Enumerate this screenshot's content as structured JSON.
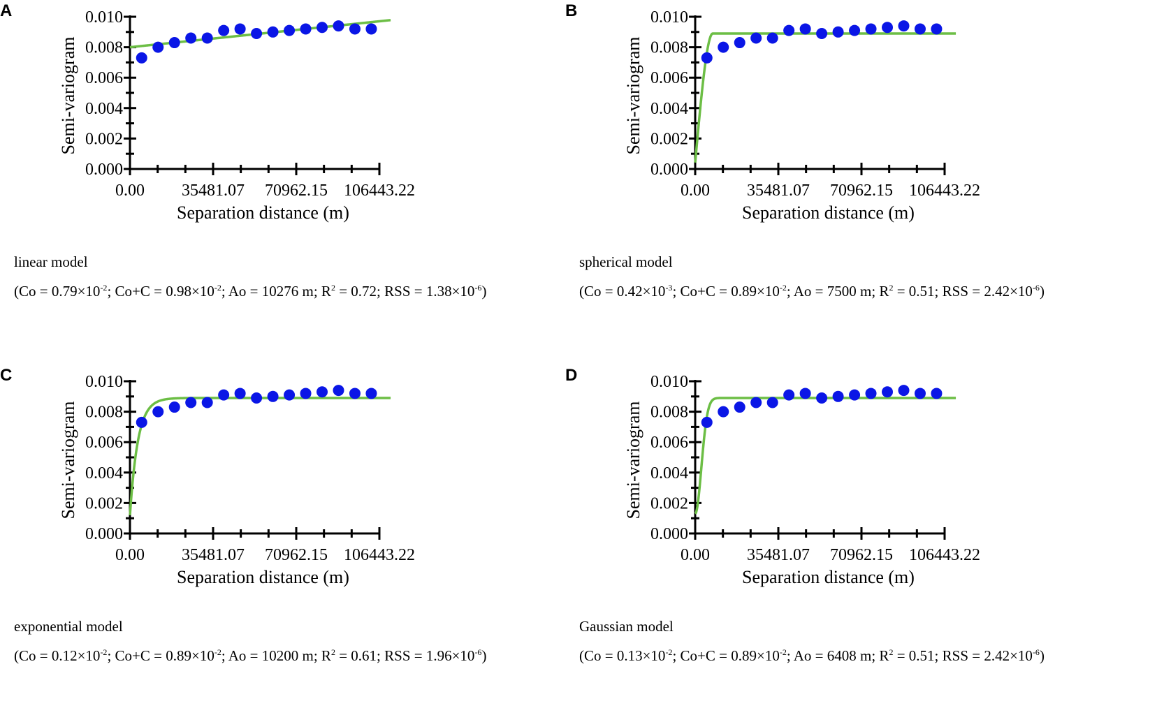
{
  "chart_data": [
    {
      "type": "scatter",
      "panel": "A",
      "model": "linear model",
      "params": {
        "Co_mant": "0.79",
        "Co_exp": "-2",
        "CoC_mant": "0.98",
        "CoC_exp": "-2",
        "Ao": "10276",
        "R2": "0.72",
        "RSS_mant": "1.38",
        "RSS_exp": "-6"
      },
      "xlabel": "Separation distance (m)",
      "ylabel": "Semi-variogram",
      "xlim": [
        0,
        106443.22
      ],
      "ylim": [
        0,
        0.01
      ],
      "xticks": [
        "0.00",
        "35481.07",
        "70962.15",
        "106443.22"
      ],
      "yticks": [
        "0.000",
        "0.002",
        "0.004",
        "0.006",
        "0.008",
        "0.010"
      ],
      "x": [
        5000,
        12000,
        19000,
        26000,
        33000,
        40000,
        47000,
        54000,
        61000,
        68000,
        75000,
        82000,
        89000,
        96000,
        103000
      ],
      "y": [
        0.0073,
        0.008,
        0.0083,
        0.0086,
        0.0086,
        0.0091,
        0.0092,
        0.0089,
        0.009,
        0.0091,
        0.0092,
        0.0093,
        0.0094,
        0.0092,
        0.0092
      ],
      "fit": {
        "model": "linear",
        "c0": 0.008,
        "slope": 1.6e-08
      }
    },
    {
      "type": "scatter",
      "panel": "B",
      "model": "spherical model",
      "params": {
        "Co_mant": "0.42",
        "Co_exp": "-3",
        "CoC_mant": "0.89",
        "CoC_exp": "-2",
        "Ao": "7500",
        "R2": "0.51",
        "RSS_mant": "2.42",
        "RSS_exp": "-6"
      },
      "xlabel": "Separation distance (m)",
      "ylabel": "Semi-variogram",
      "xlim": [
        0,
        106443.22
      ],
      "ylim": [
        0,
        0.01
      ],
      "xticks": [
        "0.00",
        "35481.07",
        "70962.15",
        "106443.22"
      ],
      "yticks": [
        "0.000",
        "0.002",
        "0.004",
        "0.006",
        "0.008",
        "0.010"
      ],
      "x": [
        5000,
        12000,
        19000,
        26000,
        33000,
        40000,
        47000,
        54000,
        61000,
        68000,
        75000,
        82000,
        89000,
        96000,
        103000
      ],
      "y": [
        0.0073,
        0.008,
        0.0083,
        0.0086,
        0.0086,
        0.0091,
        0.0092,
        0.0089,
        0.009,
        0.0091,
        0.0092,
        0.0093,
        0.0094,
        0.0092,
        0.0092
      ],
      "fit": {
        "model": "spherical",
        "c0": 0.00042,
        "sill": 0.0089,
        "range": 7500
      }
    },
    {
      "type": "scatter",
      "panel": "C",
      "model": "exponential model",
      "params": {
        "Co_mant": "0.12",
        "Co_exp": "-2",
        "CoC_mant": "0.89",
        "CoC_exp": "-2",
        "Ao": "10200",
        "R2": "0.61",
        "RSS_mant": "1.96",
        "RSS_exp": "-6"
      },
      "xlabel": "Separation distance (m)",
      "ylabel": "Semi-variogram",
      "xlim": [
        0,
        106443.22
      ],
      "ylim": [
        0,
        0.01
      ],
      "xticks": [
        "0.00",
        "35481.07",
        "70962.15",
        "106443.22"
      ],
      "yticks": [
        "0.000",
        "0.002",
        "0.004",
        "0.006",
        "0.008",
        "0.010"
      ],
      "x": [
        5000,
        12000,
        19000,
        26000,
        33000,
        40000,
        47000,
        54000,
        61000,
        68000,
        75000,
        82000,
        89000,
        96000,
        103000
      ],
      "y": [
        0.0073,
        0.008,
        0.0083,
        0.0086,
        0.0086,
        0.0091,
        0.0092,
        0.0089,
        0.009,
        0.0091,
        0.0092,
        0.0093,
        0.0094,
        0.0092,
        0.0092
      ],
      "fit": {
        "model": "exponential",
        "c0": 0.0012,
        "sill": 0.0089,
        "range": 10200
      }
    },
    {
      "type": "scatter",
      "panel": "D",
      "model": "Gaussian model",
      "params": {
        "Co_mant": "0.13",
        "Co_exp": "-2",
        "CoC_mant": "0.89",
        "CoC_exp": "-2",
        "Ao": "6408",
        "R2": "0.51",
        "RSS_mant": "2.42",
        "RSS_exp": "-6"
      },
      "xlabel": "Separation distance (m)",
      "ylabel": "Semi-variogram",
      "xlim": [
        0,
        106443.22
      ],
      "ylim": [
        0,
        0.01
      ],
      "xticks": [
        "0.00",
        "35481.07",
        "70962.15",
        "106443.22"
      ],
      "yticks": [
        "0.000",
        "0.002",
        "0.004",
        "0.006",
        "0.008",
        "0.010"
      ],
      "x": [
        5000,
        12000,
        19000,
        26000,
        33000,
        40000,
        47000,
        54000,
        61000,
        68000,
        75000,
        82000,
        89000,
        96000,
        103000
      ],
      "y": [
        0.0073,
        0.008,
        0.0083,
        0.0086,
        0.0086,
        0.0091,
        0.0092,
        0.0089,
        0.009,
        0.0091,
        0.0092,
        0.0093,
        0.0094,
        0.0092,
        0.0092
      ],
      "fit": {
        "model": "gaussian",
        "c0": 0.0013,
        "sill": 0.0089,
        "range": 6408
      }
    }
  ],
  "colors": {
    "points": "#0a16e6",
    "fit_line": "#6cbe45",
    "axis": "#000000"
  }
}
